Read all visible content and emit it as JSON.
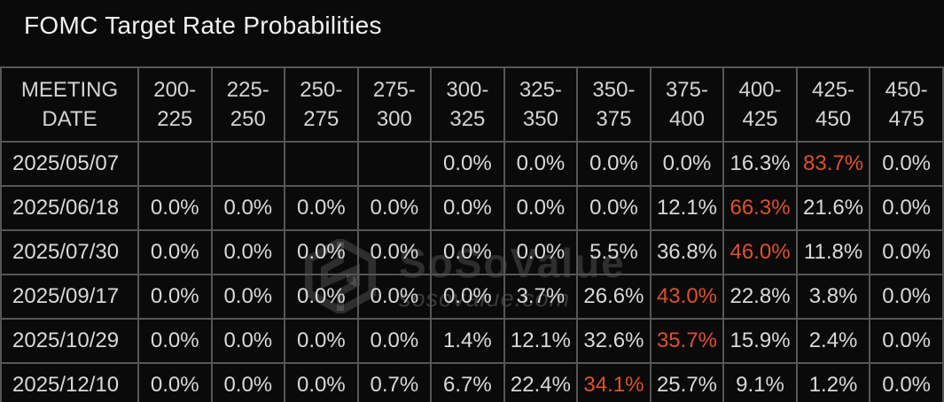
{
  "title": "FOMC Target Rate Probabilities",
  "watermark": {
    "brand": "SoSoValue",
    "domain": "sosovalue.com"
  },
  "colors": {
    "background": "#0a0a0a",
    "grid_border": "#565656",
    "cell_text": "#d9d9d9",
    "title_text": "#f2f2f2",
    "highlight_text": "#e0502c"
  },
  "table": {
    "date_header": "MEETING\nDATE",
    "rate_headers": [
      "200-\n225",
      "225-\n250",
      "250-\n275",
      "275-\n300",
      "300-\n325",
      "325-\n350",
      "350-\n375",
      "375-\n400",
      "400-\n425",
      "425-\n450",
      "450-\n475"
    ],
    "rows": [
      {
        "date": "2025/05/07",
        "values": [
          "",
          "",
          "",
          "",
          "0.0%",
          "0.0%",
          "0.0%",
          "0.0%",
          "16.3%",
          "83.7%",
          "0.0%"
        ],
        "highlight_index": 9
      },
      {
        "date": "2025/06/18",
        "values": [
          "0.0%",
          "0.0%",
          "0.0%",
          "0.0%",
          "0.0%",
          "0.0%",
          "0.0%",
          "12.1%",
          "66.3%",
          "21.6%",
          "0.0%"
        ],
        "highlight_index": 8
      },
      {
        "date": "2025/07/30",
        "values": [
          "0.0%",
          "0.0%",
          "0.0%",
          "0.0%",
          "0.0%",
          "0.0%",
          "5.5%",
          "36.8%",
          "46.0%",
          "11.8%",
          "0.0%"
        ],
        "highlight_index": 8
      },
      {
        "date": "2025/09/17",
        "values": [
          "0.0%",
          "0.0%",
          "0.0%",
          "0.0%",
          "0.0%",
          "3.7%",
          "26.6%",
          "43.0%",
          "22.8%",
          "3.8%",
          "0.0%"
        ],
        "highlight_index": 7
      },
      {
        "date": "2025/10/29",
        "values": [
          "0.0%",
          "0.0%",
          "0.0%",
          "0.0%",
          "1.4%",
          "12.1%",
          "32.6%",
          "35.7%",
          "15.9%",
          "2.4%",
          "0.0%"
        ],
        "highlight_index": 7
      },
      {
        "date": "2025/12/10",
        "values": [
          "0.0%",
          "0.0%",
          "0.0%",
          "0.7%",
          "6.7%",
          "22.4%",
          "34.1%",
          "25.7%",
          "9.1%",
          "1.2%",
          "0.0%"
        ],
        "highlight_index": 6
      }
    ]
  },
  "chart_data": {
    "type": "table",
    "title": "FOMC Target Rate Probabilities",
    "columns": [
      "MEETING DATE",
      "200-225",
      "225-250",
      "250-275",
      "275-300",
      "300-325",
      "325-350",
      "350-375",
      "375-400",
      "400-425",
      "425-450",
      "450-475"
    ],
    "rows": [
      {
        "meeting_date": "2025/05/07",
        "probabilities_pct": [
          null,
          null,
          null,
          null,
          0.0,
          0.0,
          0.0,
          0.0,
          16.3,
          83.7,
          0.0
        ],
        "highest": {
          "range": "425-450",
          "pct": 83.7
        }
      },
      {
        "meeting_date": "2025/06/18",
        "probabilities_pct": [
          0.0,
          0.0,
          0.0,
          0.0,
          0.0,
          0.0,
          0.0,
          12.1,
          66.3,
          21.6,
          0.0
        ],
        "highest": {
          "range": "400-425",
          "pct": 66.3
        }
      },
      {
        "meeting_date": "2025/07/30",
        "probabilities_pct": [
          0.0,
          0.0,
          0.0,
          0.0,
          0.0,
          0.0,
          5.5,
          36.8,
          46.0,
          11.8,
          0.0
        ],
        "highest": {
          "range": "400-425",
          "pct": 46.0
        }
      },
      {
        "meeting_date": "2025/09/17",
        "probabilities_pct": [
          0.0,
          0.0,
          0.0,
          0.0,
          0.0,
          3.7,
          26.6,
          43.0,
          22.8,
          3.8,
          0.0
        ],
        "highest": {
          "range": "375-400",
          "pct": 43.0
        }
      },
      {
        "meeting_date": "2025/10/29",
        "probabilities_pct": [
          0.0,
          0.0,
          0.0,
          0.0,
          1.4,
          12.1,
          32.6,
          35.7,
          15.9,
          2.4,
          0.0
        ],
        "highest": {
          "range": "375-400",
          "pct": 35.7
        }
      },
      {
        "meeting_date": "2025/12/10",
        "probabilities_pct": [
          0.0,
          0.0,
          0.0,
          0.7,
          6.7,
          22.4,
          34.1,
          25.7,
          9.1,
          1.2,
          0.0
        ],
        "highest": {
          "range": "350-375",
          "pct": 34.1
        }
      }
    ],
    "highlight_rule": "highest probability per row shown in orange",
    "highlight_color": "#e0502c",
    "legend_position": "none",
    "grid": true
  }
}
